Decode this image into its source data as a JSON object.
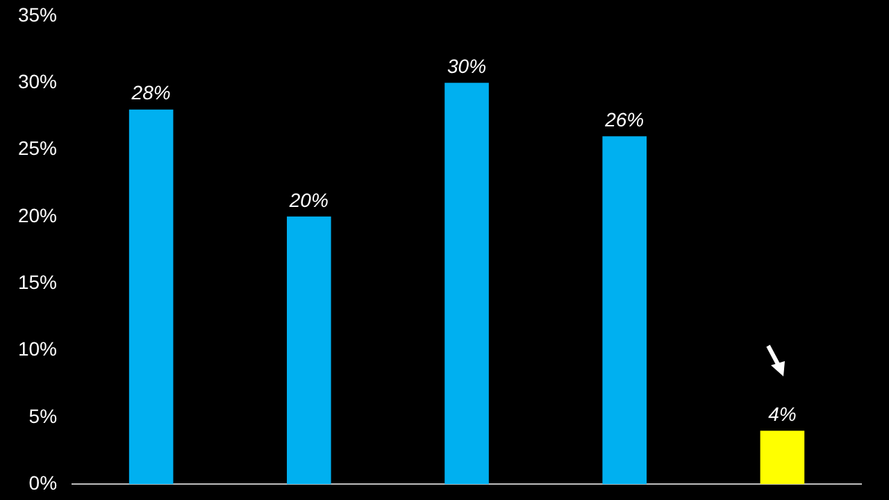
{
  "chart_data": {
    "type": "bar",
    "categories": [
      null,
      null,
      null,
      null,
      null
    ],
    "values": [
      28,
      20,
      30,
      26,
      4
    ],
    "colors": [
      "#00b0f0",
      "#00b0f0",
      "#00b0f0",
      "#00b0f0",
      "#ffff00"
    ],
    "value_labels": [
      "28%",
      "20%",
      "30%",
      "26%",
      "4%"
    ],
    "ylim": [
      0,
      35
    ],
    "yticks": [
      {
        "value": 0,
        "label": "0%"
      },
      {
        "value": 5,
        "label": "5%"
      },
      {
        "value": 10,
        "label": "10%"
      },
      {
        "value": 15,
        "label": "15%"
      },
      {
        "value": 20,
        "label": "20%"
      },
      {
        "value": 25,
        "label": "25%"
      },
      {
        "value": 30,
        "label": "30%"
      },
      {
        "value": 35,
        "label": "35%"
      }
    ],
    "grid": false,
    "legend": false
  }
}
